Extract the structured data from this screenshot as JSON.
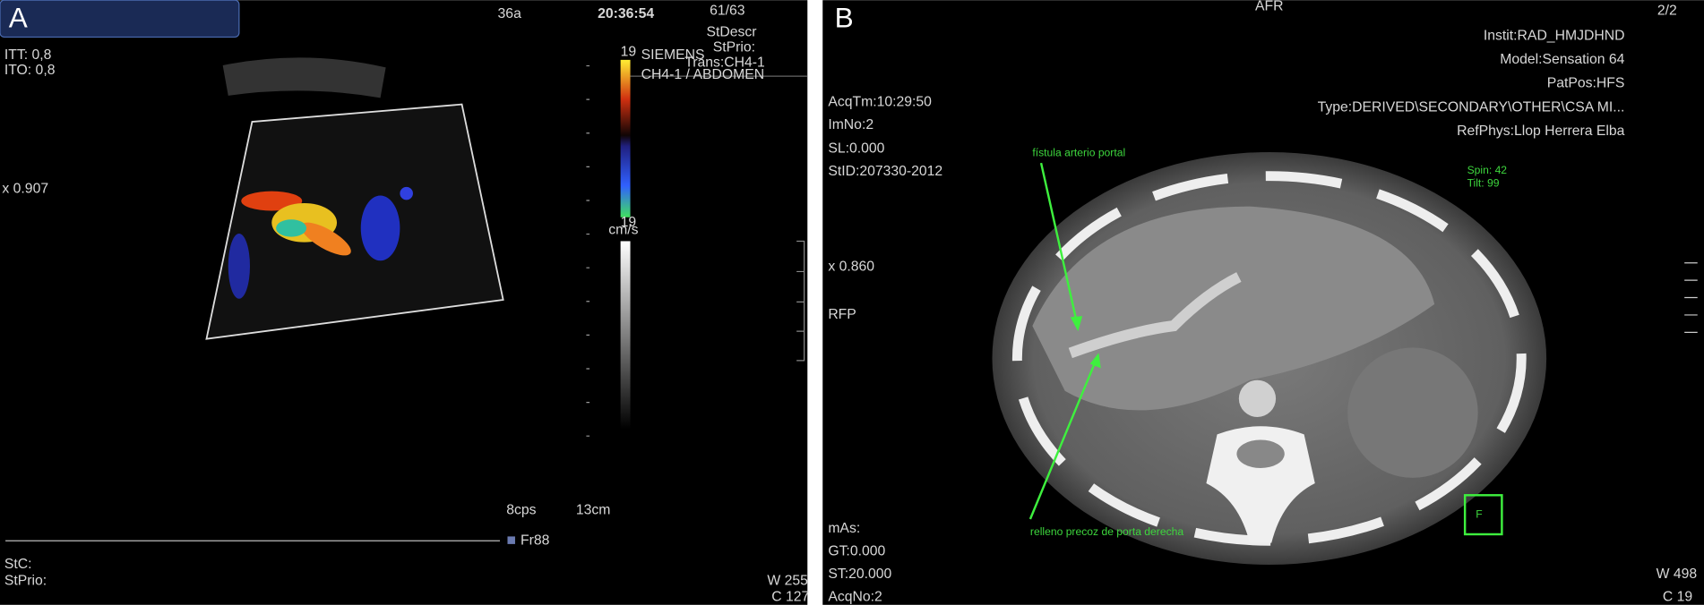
{
  "panel_a": {
    "label": "A",
    "frame": "36a",
    "time": "20:36:54",
    "image_count": "61/63",
    "st_descr": "StDescr",
    "st_prio_top": "StPrio:",
    "vendor": "SIEMENS",
    "transducer": "Trans:CH4-1",
    "preset": "CH4-1 / ABDOMEN",
    "itt": "ITT: 0,8",
    "ito": "ITO: 0,8",
    "zoom": "x 0.907",
    "scale_top": "19",
    "scale_bottom": "19",
    "scale_unit": "cm/s",
    "frame_rate": "8cps",
    "depth": "13cm",
    "fr": "Fr88",
    "st_c": "StC:",
    "st_prio": "StPrio:",
    "window": "W 255",
    "center": "C 127"
  },
  "panel_b": {
    "label": "B",
    "orientation": "AFR",
    "image_count": "2/2",
    "institution": "Instit:RAD_HMJDHND",
    "model": "Model:Sensation 64",
    "patient_position": "PatPos:HFS",
    "image_type": "Type:DERIVED\\SECONDARY\\OTHER\\CSA MI...",
    "ref_phys": "RefPhys:Llop Herrera Elba",
    "acq_time": "AcqTm:10:29:50",
    "image_no": "ImNo:2",
    "slice_location": "SL:0.000",
    "study_id": "StID:207330-2012",
    "annotation_top": "fístula arterio portal",
    "spin": "Spin: 42",
    "tilt": "Tilt: 99",
    "zoom": "x 0.860",
    "orientation_left": "RFP",
    "annotation_bottom": "relleno precoz de porta derecha",
    "mas": "mAs:",
    "gantry_tilt": "GT:0.000",
    "slice_thickness": "ST:20.000",
    "acq_no": "AcqNo:2",
    "window": "W 498",
    "center": "C 19"
  }
}
